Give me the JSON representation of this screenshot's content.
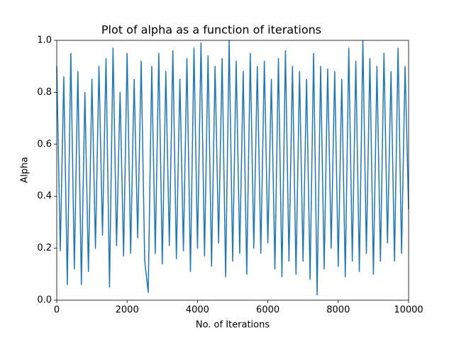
{
  "chart_data": {
    "type": "line",
    "title": "Plot of alpha as a function of iterations",
    "x_label": "No. of Iterations",
    "y_label": "Alpha",
    "color": "#1f77b4",
    "x": [
      0,
      100,
      200,
      300,
      400,
      500,
      600,
      700,
      800,
      900,
      1000,
      1100,
      1200,
      1300,
      1400,
      1500,
      1600,
      1700,
      1800,
      1900,
      2000,
      2100,
      2200,
      2300,
      2400,
      2500,
      2600,
      2700,
      2800,
      2900,
      3000,
      3100,
      3200,
      3300,
      3400,
      3500,
      3600,
      3700,
      3800,
      3900,
      4000,
      4100,
      4200,
      4300,
      4400,
      4500,
      4600,
      4700,
      4800,
      4900,
      5000,
      5100,
      5200,
      5300,
      5400,
      5500,
      5600,
      5700,
      5800,
      5900,
      6000,
      6100,
      6200,
      6300,
      6400,
      6500,
      6600,
      6700,
      6800,
      6900,
      7000,
      7100,
      7200,
      7300,
      7400,
      7500,
      7600,
      7700,
      7800,
      7900,
      8000,
      8100,
      8200,
      8300,
      8400,
      8500,
      8600,
      8700,
      8800,
      8900,
      9000,
      9100,
      9200,
      9300,
      9400,
      9500,
      9600,
      9700,
      9800,
      9900,
      10000
    ],
    "values": [
      0.9,
      0.19,
      0.86,
      0.06,
      0.95,
      0.12,
      0.88,
      0.06,
      0.8,
      0.11,
      0.85,
      0.2,
      0.9,
      0.25,
      0.93,
      0.05,
      0.97,
      0.21,
      0.8,
      0.17,
      0.95,
      0.18,
      0.85,
      0.24,
      0.92,
      0.15,
      0.03,
      0.9,
      0.18,
      0.95,
      0.14,
      0.88,
      0.21,
      0.96,
      0.16,
      0.85,
      0.19,
      0.93,
      0.11,
      0.97,
      0.2,
      0.99,
      0.17,
      0.94,
      0.13,
      0.9,
      0.22,
      0.93,
      0.09,
      1.0,
      0.15,
      0.92,
      0.18,
      0.88,
      0.1,
      0.95,
      0.2,
      0.9,
      0.18,
      0.92,
      0.22,
      0.85,
      0.12,
      0.93,
      0.09,
      0.96,
      0.15,
      0.9,
      0.1,
      0.88,
      0.15,
      0.85,
      0.08,
      0.95,
      0.02,
      0.9,
      0.12,
      0.89,
      0.2,
      0.88,
      0.13,
      0.85,
      0.09,
      0.97,
      0.15,
      0.92,
      0.11,
      1.0,
      0.18,
      0.93,
      0.1,
      0.9,
      0.15,
      0.95,
      0.22,
      0.88,
      0.15,
      0.97,
      0.18,
      0.9,
      0.35
    ],
    "xlim": [
      0,
      10000
    ],
    "ylim": [
      0,
      1
    ],
    "xticks": [
      0,
      2000,
      4000,
      6000,
      8000,
      10000
    ],
    "yticks": [
      {
        "value": 0,
        "label": "0.0"
      },
      0.2,
      0.4,
      0.6,
      0.8,
      {
        "value": 1,
        "label": "1.0"
      }
    ]
  }
}
